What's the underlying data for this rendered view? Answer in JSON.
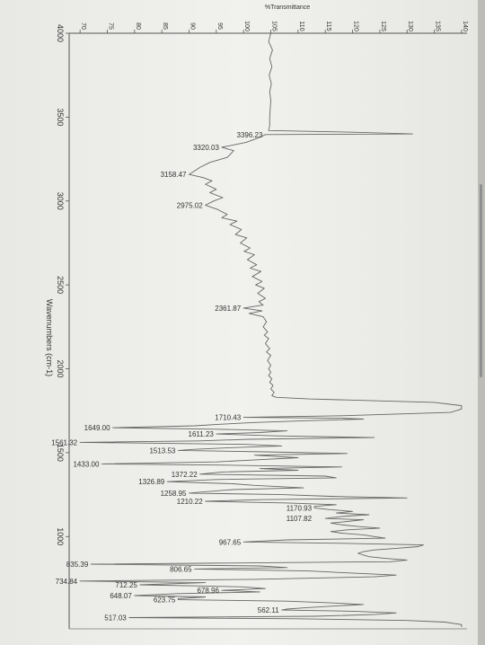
{
  "chart_data": {
    "type": "line",
    "title": "",
    "ylabel": "%Transmittance",
    "xlabel": "Wavenumbers (cm-1)",
    "x_ticks": [
      4000,
      3500,
      3000,
      2500,
      2000,
      1500,
      1000
    ],
    "y_ticks": [
      70,
      75,
      80,
      85,
      90,
      95,
      100,
      105,
      110,
      115,
      120,
      125,
      130,
      135,
      140
    ],
    "xlim": [
      4000,
      450
    ],
    "ylim": [
      68,
      141
    ],
    "grid": false,
    "series": [
      {
        "points": [
          [
            4000,
            105
          ],
          [
            3950,
            104.6
          ],
          [
            3900,
            105.3
          ],
          [
            3850,
            104.8
          ],
          [
            3800,
            105.2
          ],
          [
            3750,
            104.7
          ],
          [
            3700,
            105.1
          ],
          [
            3650,
            104.8
          ],
          [
            3600,
            105
          ],
          [
            3550,
            104.9
          ],
          [
            3500,
            104.8
          ],
          [
            3450,
            104.8
          ],
          [
            3420,
            104.6
          ],
          [
            3410,
            120
          ],
          [
            3400,
            131
          ],
          [
            3396.23,
            104
          ],
          [
            3380,
            103
          ],
          [
            3350,
            100.5
          ],
          [
            3320.03,
            96
          ],
          [
            3300,
            98.2
          ],
          [
            3260,
            97
          ],
          [
            3230,
            93.8
          ],
          [
            3200,
            92
          ],
          [
            3158.47,
            90
          ],
          [
            3140,
            92.5
          ],
          [
            3120,
            94.2
          ],
          [
            3100,
            93
          ],
          [
            3070,
            95
          ],
          [
            3050,
            93.8
          ],
          [
            3020,
            96.2
          ],
          [
            3000,
            94.5
          ],
          [
            2975.02,
            93
          ],
          [
            2950,
            95.2
          ],
          [
            2920,
            97
          ],
          [
            2900,
            96
          ],
          [
            2880,
            98.8
          ],
          [
            2860,
            97.5
          ],
          [
            2830,
            99.6
          ],
          [
            2800,
            98.5
          ],
          [
            2780,
            100.6
          ],
          [
            2750,
            99.4
          ],
          [
            2720,
            101.2
          ],
          [
            2700,
            100.1
          ],
          [
            2680,
            102
          ],
          [
            2650,
            100.7
          ],
          [
            2620,
            102.4
          ],
          [
            2600,
            101.2
          ],
          [
            2580,
            103.2
          ],
          [
            2550,
            101.6
          ],
          [
            2520,
            103.4
          ],
          [
            2500,
            102.2
          ],
          [
            2480,
            103.8
          ],
          [
            2450,
            102.6
          ],
          [
            2420,
            104
          ],
          [
            2400,
            102.8
          ],
          [
            2380,
            103.6
          ],
          [
            2361.87,
            100
          ],
          [
            2345,
            103.4
          ],
          [
            2330,
            101
          ],
          [
            2310,
            103.6
          ],
          [
            2280,
            104.2
          ],
          [
            2250,
            103.6
          ],
          [
            2220,
            104.4
          ],
          [
            2200,
            103.8
          ],
          [
            2180,
            104.6
          ],
          [
            2150,
            104
          ],
          [
            2120,
            104.8
          ],
          [
            2100,
            104.2
          ],
          [
            2080,
            105
          ],
          [
            2050,
            104.4
          ],
          [
            2020,
            105
          ],
          [
            2000,
            104.6
          ],
          [
            1980,
            105
          ],
          [
            1960,
            104.6
          ],
          [
            1940,
            105.2
          ],
          [
            1920,
            104.8
          ],
          [
            1900,
            105.4
          ],
          [
            1880,
            105
          ],
          [
            1860,
            105.6
          ],
          [
            1840,
            105.2
          ],
          [
            1830,
            106
          ],
          [
            1820,
            112
          ],
          [
            1800,
            135
          ],
          [
            1780,
            140
          ],
          [
            1760,
            140
          ],
          [
            1740,
            138
          ],
          [
            1720,
            118
          ],
          [
            1710.43,
            100
          ],
          [
            1705,
            118
          ],
          [
            1700,
            122
          ],
          [
            1690,
            111
          ],
          [
            1680,
            102
          ],
          [
            1670,
            96
          ],
          [
            1660,
            91
          ],
          [
            1649,
            76
          ],
          [
            1640,
            95
          ],
          [
            1630,
            108
          ],
          [
            1620,
            103
          ],
          [
            1611.23,
            95
          ],
          [
            1600,
            106
          ],
          [
            1590,
            124
          ],
          [
            1580,
            101
          ],
          [
            1570,
            92
          ],
          [
            1561.32,
            70
          ],
          [
            1550,
            100
          ],
          [
            1540,
            107
          ],
          [
            1530,
            98
          ],
          [
            1520,
            91
          ],
          [
            1513.53,
            88
          ],
          [
            1505,
            104
          ],
          [
            1495,
            119
          ],
          [
            1485,
            102
          ],
          [
            1470,
            110
          ],
          [
            1455,
            101
          ],
          [
            1445,
            95
          ],
          [
            1433,
            74
          ],
          [
            1425,
            98
          ],
          [
            1415,
            118
          ],
          [
            1405,
            103
          ],
          [
            1395,
            110
          ],
          [
            1385,
            96
          ],
          [
            1372.22,
            92
          ],
          [
            1360,
            115
          ],
          [
            1350,
            117
          ],
          [
            1340,
            95
          ],
          [
            1326.89,
            86
          ],
          [
            1315,
            98
          ],
          [
            1305,
            102
          ],
          [
            1290,
            111
          ],
          [
            1280,
            98
          ],
          [
            1270,
            94
          ],
          [
            1258.95,
            90
          ],
          [
            1250,
            107
          ],
          [
            1240,
            116
          ],
          [
            1230,
            130
          ],
          [
            1220,
            103
          ],
          [
            1210.22,
            93
          ],
          [
            1200,
            108
          ],
          [
            1190,
            117
          ],
          [
            1180,
            113
          ],
          [
            1170.93,
            113
          ],
          [
            1160,
            116
          ],
          [
            1150,
            120
          ],
          [
            1140,
            117
          ],
          [
            1130,
            123
          ],
          [
            1120,
            118
          ],
          [
            1107.82,
            115
          ],
          [
            1100,
            122
          ],
          [
            1090,
            119
          ],
          [
            1080,
            116
          ],
          [
            1070,
            118
          ],
          [
            1060,
            121
          ],
          [
            1050,
            125
          ],
          [
            1040,
            119
          ],
          [
            1030,
            116
          ],
          [
            1020,
            118
          ],
          [
            1010,
            122
          ],
          [
            1000,
            124
          ],
          [
            990,
            126
          ],
          [
            980,
            108
          ],
          [
            967.65,
            100
          ],
          [
            960,
            118
          ],
          [
            950,
            133
          ],
          [
            940,
            132
          ],
          [
            930,
            128
          ],
          [
            920,
            124
          ],
          [
            910,
            122
          ],
          [
            900,
            121
          ],
          [
            880,
            123
          ],
          [
            870,
            126
          ],
          [
            860,
            130
          ],
          [
            850,
            127
          ],
          [
            835.39,
            72
          ],
          [
            825,
            103
          ],
          [
            815,
            108
          ],
          [
            806.65,
            91
          ],
          [
            795,
            112
          ],
          [
            785,
            118
          ],
          [
            770,
            128
          ],
          [
            760,
            124
          ],
          [
            745,
            102
          ],
          [
            734.84,
            70
          ],
          [
            725,
            93
          ],
          [
            712.25,
            81
          ],
          [
            700,
            100
          ],
          [
            690,
            104
          ],
          [
            678.96,
            96
          ],
          [
            670,
            103
          ],
          [
            660,
            88
          ],
          [
            648.07,
            80
          ],
          [
            640,
            93
          ],
          [
            630,
            88
          ],
          [
            623.75,
            88
          ],
          [
            615,
            108
          ],
          [
            605,
            116
          ],
          [
            595,
            122
          ],
          [
            585,
            116
          ],
          [
            575,
            111
          ],
          [
            568,
            108
          ],
          [
            562.11,
            107
          ],
          [
            555,
            120
          ],
          [
            545,
            128
          ],
          [
            535,
            124
          ],
          [
            525,
            113
          ],
          [
            517.03,
            79
          ],
          [
            510,
            110
          ],
          [
            500,
            130
          ],
          [
            490,
            137
          ],
          [
            475,
            140
          ],
          [
            460,
            140
          ]
        ]
      }
    ],
    "annotations": [
      {
        "label": "3396.23",
        "x": 3396.23,
        "y": 104
      },
      {
        "label": "3320.03",
        "x": 3320.03,
        "y": 96
      },
      {
        "label": "3158.47",
        "x": 3158.47,
        "y": 90
      },
      {
        "label": "2975.02",
        "x": 2975.02,
        "y": 93
      },
      {
        "label": "2361.87",
        "x": 2361.87,
        "y": 100
      },
      {
        "label": "1710.43",
        "x": 1710.43,
        "y": 100
      },
      {
        "label": "1649.00",
        "x": 1649,
        "y": 76
      },
      {
        "label": "1611.23",
        "x": 1611.23,
        "y": 95
      },
      {
        "label": "1561.32",
        "x": 1561.32,
        "y": 70
      },
      {
        "label": "1513.53",
        "x": 1513.53,
        "y": 88
      },
      {
        "label": "1433.00",
        "x": 1433,
        "y": 74
      },
      {
        "label": "1372.22",
        "x": 1372.22,
        "y": 92
      },
      {
        "label": "1326.89",
        "x": 1326.89,
        "y": 86
      },
      {
        "label": "1258.95",
        "x": 1258.95,
        "y": 90
      },
      {
        "label": "1210.22",
        "x": 1210.22,
        "y": 93
      },
      {
        "label": "1170.93",
        "x": 1170.93,
        "y": 113
      },
      {
        "label": "1107.82",
        "x": 1107.82,
        "y": 113
      },
      {
        "label": "967.65",
        "x": 967.65,
        "y": 100
      },
      {
        "label": "835.39",
        "x": 835.39,
        "y": 72
      },
      {
        "label": "806.65",
        "x": 806.65,
        "y": 91
      },
      {
        "label": "734.84",
        "x": 734.84,
        "y": 70
      },
      {
        "label": "712.25",
        "x": 712.25,
        "y": 81
      },
      {
        "label": "678.96",
        "x": 678.96,
        "y": 96
      },
      {
        "label": "648.07",
        "x": 648.07,
        "y": 80
      },
      {
        "label": "623.75",
        "x": 623.75,
        "y": 88
      },
      {
        "label": "562.11",
        "x": 562.11,
        "y": 107
      },
      {
        "label": "517.03",
        "x": 517.03,
        "y": 79
      }
    ]
  }
}
